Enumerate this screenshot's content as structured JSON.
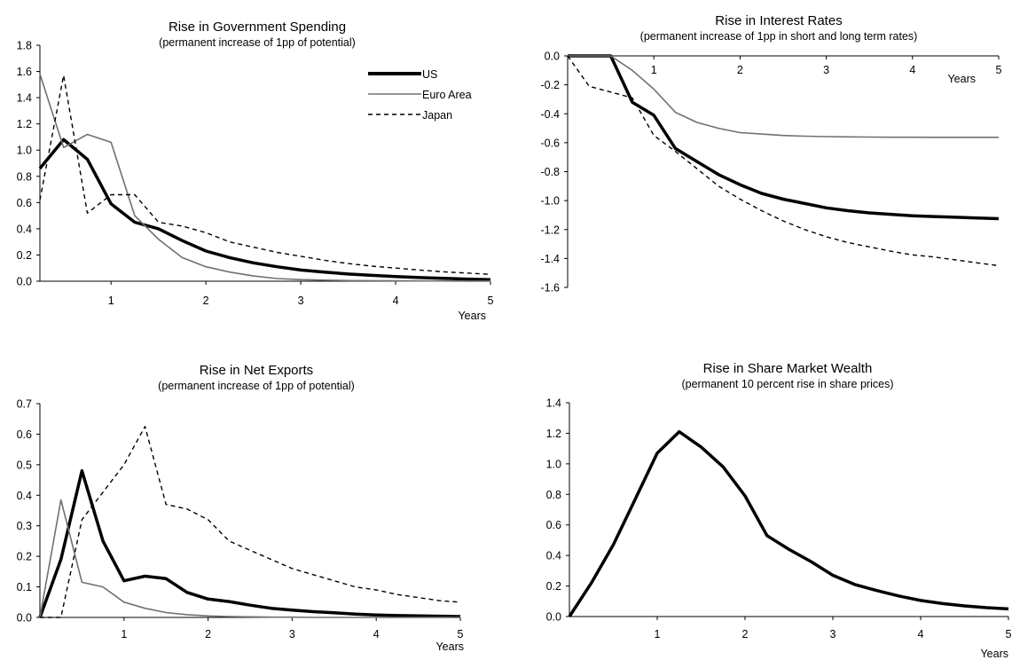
{
  "chart_data": [
    {
      "type": "line",
      "title": "Rise in Government Spending",
      "subtitle": "(permanent increase of 1pp of potential)",
      "xlabel": "Years",
      "ylabel": "",
      "xlim": [
        0.25,
        5
      ],
      "ylim": [
        0,
        1.8
      ],
      "x_ticks": [
        "1",
        "2",
        "3",
        "4",
        "5"
      ],
      "y_ticks": [
        "0.0",
        "0.2",
        "0.4",
        "0.6",
        "0.8",
        "1.0",
        "1.2",
        "1.4",
        "1.6",
        "1.8"
      ],
      "legend": "top-right",
      "grid": false,
      "x": [
        0.25,
        0.5,
        0.75,
        1.0,
        1.25,
        1.5,
        1.75,
        2.0,
        2.25,
        2.5,
        2.75,
        3.0,
        3.25,
        3.5,
        3.75,
        4.0,
        4.25,
        4.5,
        4.75,
        5.0
      ],
      "series": [
        {
          "name": "US",
          "style": "thick",
          "color": "#000000",
          "values": [
            0.86,
            1.08,
            0.93,
            0.59,
            0.45,
            0.4,
            0.31,
            0.23,
            0.18,
            0.14,
            0.11,
            0.085,
            0.07,
            0.055,
            0.045,
            0.035,
            0.028,
            0.022,
            0.016,
            0.012
          ]
        },
        {
          "name": "Euro Area",
          "style": "thin",
          "color": "#707070",
          "values": [
            1.58,
            1.02,
            1.12,
            1.06,
            0.5,
            0.32,
            0.18,
            0.11,
            0.07,
            0.04,
            0.02,
            0.012,
            0.008,
            0.005,
            0.004,
            0.003,
            0.002,
            0.002,
            0.001,
            0.001
          ]
        },
        {
          "name": "Japan",
          "style": "dashed",
          "color": "#000000",
          "values": [
            0.62,
            1.57,
            0.52,
            0.66,
            0.66,
            0.45,
            0.42,
            0.37,
            0.3,
            0.26,
            0.22,
            0.19,
            0.16,
            0.135,
            0.115,
            0.1,
            0.085,
            0.072,
            0.062,
            0.052
          ]
        }
      ]
    },
    {
      "type": "line",
      "title": "Rise in Interest Rates",
      "subtitle": "(permanent increase of 1pp in short and long term rates)",
      "xlabel": "Years",
      "ylabel": "",
      "xlim": [
        0,
        5
      ],
      "ylim": [
        -1.6,
        0
      ],
      "x_ticks": [
        "1",
        "2",
        "3",
        "4",
        "5"
      ],
      "y_ticks": [
        "0.0",
        "-0.2",
        "-0.4",
        "-0.6",
        "-0.8",
        "-1.0",
        "-1.2",
        "-1.4",
        "-1.6"
      ],
      "grid": false,
      "x": [
        0.0,
        0.25,
        0.5,
        0.75,
        1.0,
        1.25,
        1.5,
        1.75,
        2.0,
        2.25,
        2.5,
        2.75,
        3.0,
        3.25,
        3.5,
        3.75,
        4.0,
        4.25,
        4.5,
        4.75,
        5.0
      ],
      "series": [
        {
          "name": "US",
          "style": "thick",
          "color": "#000000",
          "values": [
            0.0,
            0.0,
            0.0,
            -0.32,
            -0.41,
            -0.64,
            -0.73,
            -0.82,
            -0.89,
            -0.95,
            -0.99,
            -1.02,
            -1.05,
            -1.07,
            -1.085,
            -1.095,
            -1.105,
            -1.11,
            -1.115,
            -1.12,
            -1.125
          ]
        },
        {
          "name": "Euro Area",
          "style": "thin",
          "color": "#707070",
          "values": [
            0.0,
            0.0,
            0.0,
            -0.1,
            -0.23,
            -0.39,
            -0.46,
            -0.5,
            -0.53,
            -0.54,
            -0.55,
            -0.555,
            -0.558,
            -0.56,
            -0.561,
            -0.562,
            -0.562,
            -0.563,
            -0.563,
            -0.563,
            -0.563
          ]
        },
        {
          "name": "Japan",
          "style": "dashed",
          "color": "#000000",
          "values": [
            0.0,
            -0.21,
            -0.25,
            -0.29,
            -0.55,
            -0.66,
            -0.78,
            -0.9,
            -0.99,
            -1.07,
            -1.14,
            -1.2,
            -1.25,
            -1.29,
            -1.32,
            -1.35,
            -1.375,
            -1.39,
            -1.41,
            -1.43,
            -1.45
          ]
        }
      ]
    },
    {
      "type": "line",
      "title": "Rise in Net Exports",
      "subtitle": "(permanent increase of 1pp of potential)",
      "xlabel": "Years",
      "ylabel": "",
      "xlim": [
        0,
        5
      ],
      "ylim": [
        0,
        0.7
      ],
      "x_ticks": [
        "1",
        "2",
        "3",
        "4",
        "5"
      ],
      "y_ticks": [
        "0.0",
        "0.1",
        "0.2",
        "0.3",
        "0.4",
        "0.5",
        "0.6",
        "0.7"
      ],
      "grid": false,
      "x": [
        0.0,
        0.25,
        0.5,
        0.75,
        1.0,
        1.25,
        1.5,
        1.75,
        2.0,
        2.25,
        2.5,
        2.75,
        3.0,
        3.25,
        3.5,
        3.75,
        4.0,
        4.25,
        4.5,
        4.75,
        5.0
      ],
      "series": [
        {
          "name": "US",
          "style": "thick",
          "color": "#000000",
          "values": [
            0.0,
            0.19,
            0.48,
            0.25,
            0.12,
            0.135,
            0.127,
            0.082,
            0.06,
            0.052,
            0.04,
            0.03,
            0.024,
            0.019,
            0.015,
            0.011,
            0.008,
            0.006,
            0.005,
            0.004,
            0.003
          ]
        },
        {
          "name": "Euro Area",
          "style": "thin",
          "color": "#707070",
          "values": [
            0.0,
            0.385,
            0.115,
            0.1,
            0.05,
            0.03,
            0.016,
            0.009,
            0.005,
            0.003,
            0.002,
            0.001,
            0.001,
            0.0,
            0.0,
            0.0,
            0.0,
            0.0,
            0.0,
            0.0,
            0.0
          ]
        },
        {
          "name": "Japan",
          "style": "dashed",
          "color": "#000000",
          "values": [
            0.0,
            0.0,
            0.32,
            0.41,
            0.5,
            0.625,
            0.37,
            0.355,
            0.32,
            0.25,
            0.22,
            0.19,
            0.16,
            0.14,
            0.12,
            0.1,
            0.09,
            0.075,
            0.065,
            0.055,
            0.05
          ]
        }
      ]
    },
    {
      "type": "line",
      "title": "Rise in Share Market Wealth",
      "subtitle": "(permanent 10 percent rise in share prices)",
      "xlabel": "Years",
      "ylabel": "",
      "xlim": [
        0,
        5
      ],
      "ylim": [
        0,
        1.4
      ],
      "x_ticks": [
        "1",
        "2",
        "3",
        "4",
        "5"
      ],
      "y_ticks": [
        "0.0",
        "0.2",
        "0.4",
        "0.6",
        "0.8",
        "1.0",
        "1.2",
        "1.4"
      ],
      "grid": false,
      "x": [
        0.0,
        0.25,
        0.5,
        0.75,
        1.0,
        1.25,
        1.5,
        1.75,
        2.0,
        2.25,
        2.5,
        2.75,
        3.0,
        3.25,
        3.5,
        3.75,
        4.0,
        4.25,
        4.5,
        4.75,
        5.0
      ],
      "series": [
        {
          "name": "US",
          "style": "thick",
          "color": "#000000",
          "values": [
            0.0,
            0.22,
            0.47,
            0.77,
            1.07,
            1.21,
            1.11,
            0.98,
            0.79,
            0.53,
            0.44,
            0.36,
            0.27,
            0.21,
            0.17,
            0.135,
            0.105,
            0.085,
            0.07,
            0.058,
            0.05
          ]
        }
      ]
    }
  ]
}
